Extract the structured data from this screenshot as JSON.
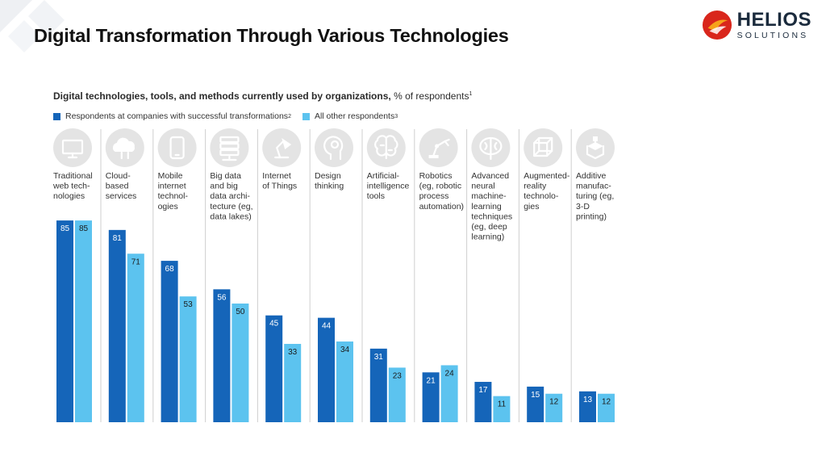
{
  "header": {
    "title": "Digital Transformation Through Various Technologies",
    "brand_name": "HELIOS",
    "brand_sub": "SOLUTIONS"
  },
  "colors": {
    "successful": "#1565b9",
    "others": "#5cc3ef",
    "icon_circle": "#e4e4e4",
    "divider": "#cfcfcf"
  },
  "chart_data": {
    "type": "bar",
    "title_bold": "Digital technologies, tools, and methods currently used by organizations,",
    "title_rest": " % of respondents",
    "title_note": "1",
    "legend": [
      {
        "label": "Respondents at companies with successful transformations",
        "note": "2"
      },
      {
        "label": "All other respondents",
        "note": "3"
      }
    ],
    "categories": [
      {
        "name": "Traditional web technologies",
        "lines": [
          "Traditional",
          "web tech-",
          "nologies"
        ],
        "icon": "monitor-icon"
      },
      {
        "name": "Cloud-based services",
        "lines": [
          "Cloud-",
          "based",
          "services"
        ],
        "icon": "cloud-icon"
      },
      {
        "name": "Mobile internet technologies",
        "lines": [
          "Mobile",
          "internet",
          "technol-",
          "ogies"
        ],
        "icon": "smartphone-icon"
      },
      {
        "name": "Big data and big data architecture (eg, data lakes)",
        "lines": [
          "Big data",
          "and big",
          "data archi-",
          "tecture (eg,",
          "data lakes)"
        ],
        "icon": "server-icon"
      },
      {
        "name": "Internet of Things",
        "lines": [
          "Internet",
          "of Things"
        ],
        "icon": "desk-lamp-icon"
      },
      {
        "name": "Design thinking",
        "lines": [
          "Design",
          "thinking"
        ],
        "icon": "head-lightbulb-icon"
      },
      {
        "name": "Artificial-intelligence tools",
        "lines": [
          "Artificial-",
          "intelligence",
          "tools"
        ],
        "icon": "brain-circuit-icon"
      },
      {
        "name": "Robotics (eg, robotic process automation)",
        "lines": [
          "Robotics",
          "(eg, robotic",
          "process",
          "automation)"
        ],
        "icon": "robot-arm-icon"
      },
      {
        "name": "Advanced neural machine-learning techniques (eg, deep learning)",
        "lines": [
          "Advanced",
          "neural",
          "machine-",
          "learning",
          "techniques",
          "(eg, deep",
          "learning)"
        ],
        "icon": "brain-icon"
      },
      {
        "name": "Augmented-reality technologies",
        "lines": [
          "Augmented-",
          "reality",
          "technolo-",
          "gies"
        ],
        "icon": "cube-icon"
      },
      {
        "name": "Additive manufacturing (eg, 3-D printing)",
        "lines": [
          "Additive",
          "manufac-",
          "turing (eg,",
          "3-D",
          "printing)"
        ],
        "icon": "3d-printer-icon"
      }
    ],
    "series": [
      {
        "values": [
          85,
          81,
          68,
          56,
          45,
          44,
          31,
          21,
          17,
          15,
          13
        ]
      },
      {
        "values": [
          85,
          71,
          53,
          50,
          33,
          34,
          23,
          24,
          11,
          12,
          12
        ]
      }
    ],
    "ylim": [
      0,
      100
    ],
    "grid": false
  }
}
